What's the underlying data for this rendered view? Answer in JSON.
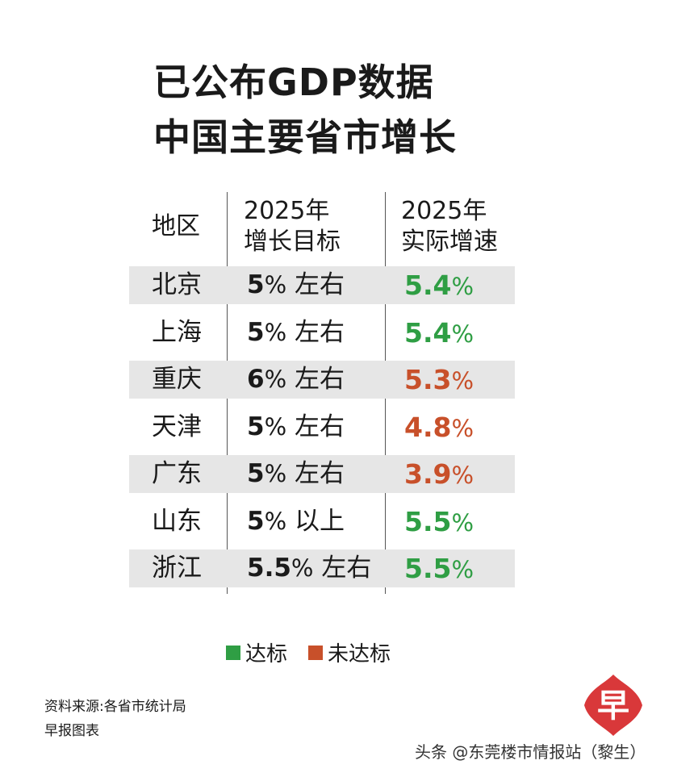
{
  "title_line1": "已公布GDP数据",
  "title_line2": "中国主要省市增长",
  "colors": {
    "met": "#2f9e44",
    "not_met": "#c8502a",
    "row_shade": "#e6e6e6"
  },
  "chart_data": {
    "type": "table",
    "headers": {
      "region": "地区",
      "target_line1": "2025年",
      "target_line2": "增长目标",
      "actual_line1": "2025年",
      "actual_line2": "实际增速"
    },
    "rows": [
      {
        "region": "北京",
        "target_value": "5",
        "target_suffix": "左右",
        "actual": "5.4",
        "status": "met"
      },
      {
        "region": "上海",
        "target_value": "5",
        "target_suffix": "左右",
        "actual": "5.4",
        "status": "met"
      },
      {
        "region": "重庆",
        "target_value": "6",
        "target_suffix": "左右",
        "actual": "5.3",
        "status": "not_met"
      },
      {
        "region": "天津",
        "target_value": "5",
        "target_suffix": "左右",
        "actual": "4.8",
        "status": "not_met"
      },
      {
        "region": "广东",
        "target_value": "5",
        "target_suffix": "左右",
        "actual": "3.9",
        "status": "not_met"
      },
      {
        "region": "山东",
        "target_value": "5",
        "target_suffix": "以上",
        "actual": "5.5",
        "status": "met"
      },
      {
        "region": "浙江",
        "target_value": "5.5",
        "target_suffix": "左右",
        "actual": "5.5",
        "status": "met"
      }
    ],
    "legend": [
      {
        "label": "达标",
        "status": "met"
      },
      {
        "label": "未达标",
        "status": "not_met"
      }
    ]
  },
  "source": "资料来源:各省市统计局",
  "credit": "早报图表",
  "logo_char": "早",
  "watermark": "头条 @东莞楼市情报站（黎生）"
}
